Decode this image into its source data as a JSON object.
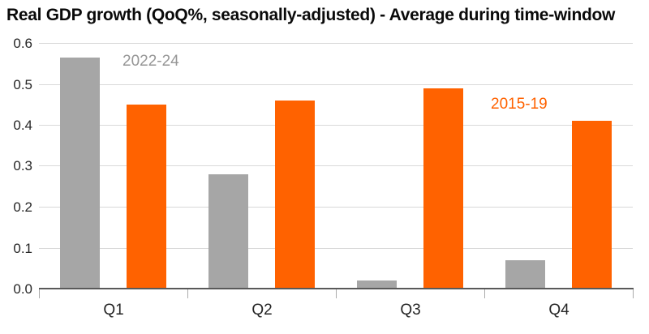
{
  "chart_data": {
    "type": "bar",
    "title": "Real GDP growth (QoQ%, seasonally-adjusted) - Average during time-window",
    "categories": [
      "Q1",
      "Q2",
      "Q3",
      "Q4"
    ],
    "series": [
      {
        "name": "2022-24",
        "color": "#a6a6a6",
        "values": [
          0.565,
          0.28,
          0.02,
          0.07
        ]
      },
      {
        "name": "2015-19",
        "color": "#ff6200",
        "values": [
          0.45,
          0.46,
          0.49,
          0.41
        ]
      }
    ],
    "xlabel": "",
    "ylabel": "",
    "ylim": [
      0,
      0.6
    ],
    "ytick_step": 0.1,
    "ytick_labels": [
      "0.0",
      "0.1",
      "0.2",
      "0.3",
      "0.4",
      "0.5",
      "0.6"
    ],
    "grid": "horizontal",
    "legend_position": "in-plot text annotations",
    "annotations": [
      {
        "text": "2022-24",
        "color": "#969696",
        "x": 151,
        "y": 66
      },
      {
        "text": "2015-19",
        "color": "#ff6200",
        "x": 605,
        "y": 119
      }
    ],
    "colors": {
      "background": "#ffffff",
      "axis": "#595959",
      "gridline": "#d9d9d9",
      "tick": "#ababab",
      "tick_label_text": "#262626",
      "title_text": "#0a0a0a"
    }
  }
}
